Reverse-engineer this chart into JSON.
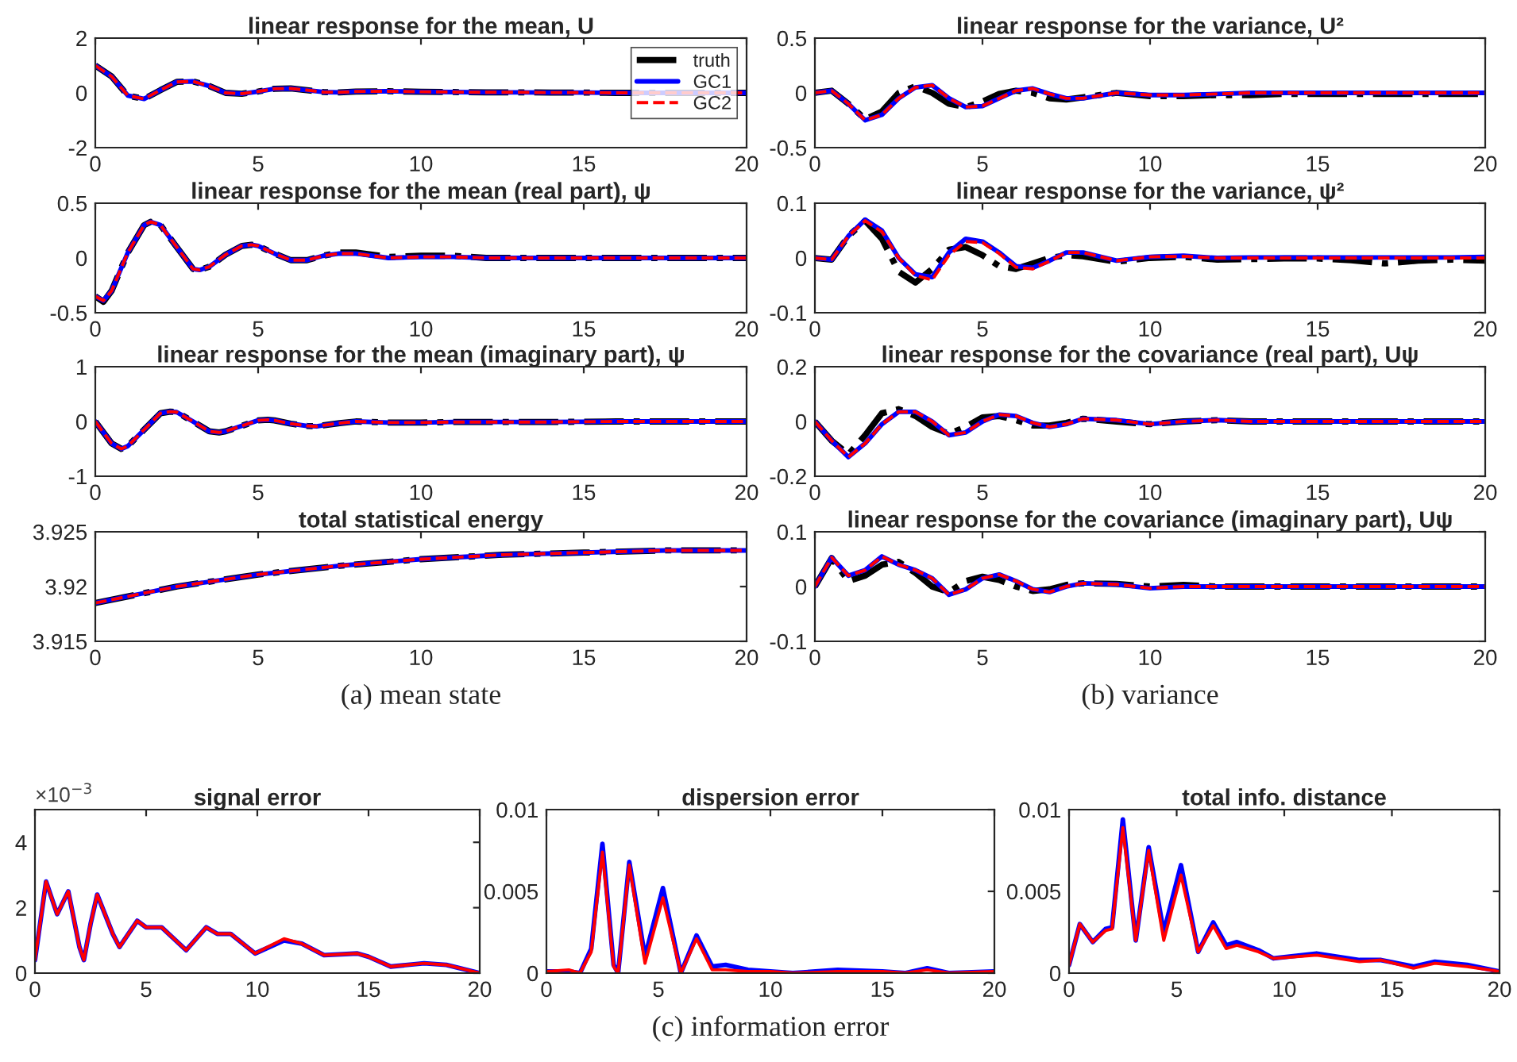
{
  "chart_data": [
    {
      "type": "line",
      "title": "linear response for the mean, U",
      "legend": "top right",
      "xlim": [
        0,
        20
      ],
      "xticks": [
        0,
        5,
        10,
        15,
        20
      ],
      "ylim": [
        -2,
        2
      ],
      "yticks": [
        -2,
        0,
        2
      ],
      "x": [
        0,
        0.5,
        1,
        1.5,
        2,
        2.5,
        3,
        3.5,
        4,
        4.5,
        5,
        5.5,
        6,
        6.5,
        7,
        7.5,
        8,
        9,
        10,
        11,
        12,
        13,
        14,
        15,
        16,
        17,
        18,
        19,
        20
      ],
      "series": [
        {
          "name": "truth",
          "color": "#000000",
          "line_style": "dashdot",
          "values": [
            1.0,
            0.6,
            -0.1,
            -0.22,
            0.1,
            0.4,
            0.42,
            0.25,
            0.0,
            -0.03,
            0.05,
            0.15,
            0.16,
            0.1,
            0.03,
            0.02,
            0.05,
            0.06,
            0.04,
            0.03,
            0.02,
            0.02,
            0.01,
            0.01,
            0,
            null,
            null,
            null,
            0
          ]
        },
        {
          "name": "GC1",
          "color": "#0000ff",
          "line_style": "solid",
          "values": [
            1.0,
            0.6,
            -0.1,
            -0.22,
            0.1,
            0.4,
            0.42,
            0.25,
            0.0,
            -0.03,
            0.05,
            0.15,
            0.16,
            0.1,
            0.03,
            0.02,
            0.05,
            0.06,
            0.04,
            0.03,
            0.02,
            0.02,
            0.01,
            0.01,
            0,
            null,
            null,
            null,
            0
          ]
        },
        {
          "name": "GC2",
          "color": "#ff0000",
          "line_style": "dashed",
          "values": [
            1.0,
            0.6,
            -0.1,
            -0.22,
            0.1,
            0.4,
            0.42,
            0.25,
            0.0,
            -0.03,
            0.05,
            0.15,
            0.16,
            0.1,
            0.03,
            0.02,
            0.05,
            0.06,
            0.04,
            0.03,
            0.02,
            0.02,
            0.01,
            0.01,
            0,
            null,
            null,
            null,
            0
          ]
        }
      ]
    },
    {
      "type": "line",
      "title": "linear response for the mean (real part), ψ",
      "xlim": [
        0,
        20
      ],
      "xticks": [
        0,
        5,
        10,
        15,
        20
      ],
      "ylim": [
        -0.5,
        0.5
      ],
      "yticks": [
        -0.5,
        0,
        0.5
      ],
      "x": [
        0,
        0.25,
        0.5,
        1,
        1.5,
        1.7,
        2,
        2.5,
        3,
        3.2,
        3.5,
        4,
        4.5,
        4.8,
        5,
        5.5,
        6,
        6.5,
        7,
        7.5,
        8,
        9,
        10,
        11,
        12,
        14,
        16,
        18,
        20
      ],
      "series": [
        {
          "color": "#000000",
          "line_style": "dashdot",
          "values": [
            -0.35,
            -0.4,
            -0.3,
            0.05,
            0.3,
            0.33,
            0.3,
            0.1,
            -0.1,
            -0.11,
            -0.08,
            0.03,
            0.11,
            0.12,
            0.11,
            0.04,
            -0.02,
            -0.02,
            0.02,
            0.05,
            0.05,
            0.01,
            0.02,
            0.02,
            0.0,
            0,
            0,
            0,
            0
          ]
        },
        {
          "color": "#0000ff",
          "line_style": "solid",
          "values": [
            -0.35,
            -0.39,
            -0.3,
            0.05,
            0.3,
            0.33,
            0.3,
            0.1,
            -0.1,
            -0.11,
            -0.08,
            0.03,
            0.11,
            0.12,
            0.11,
            0.04,
            -0.02,
            -0.02,
            0.02,
            0.04,
            0.04,
            0.0,
            0.01,
            0.01,
            0.0,
            0,
            0,
            0,
            0
          ]
        },
        {
          "color": "#ff0000",
          "line_style": "dashed",
          "values": [
            -0.35,
            -0.39,
            -0.3,
            0.05,
            0.3,
            0.33,
            0.3,
            0.1,
            -0.1,
            -0.11,
            -0.08,
            0.03,
            0.11,
            0.12,
            0.11,
            0.04,
            -0.02,
            -0.02,
            0.02,
            0.04,
            0.04,
            0.0,
            0.01,
            0.01,
            0.0,
            0,
            0,
            0,
            0
          ]
        }
      ]
    },
    {
      "type": "line",
      "title": "linear response for the mean (imaginary part), ψ",
      "xlim": [
        0,
        20
      ],
      "xticks": [
        0,
        5,
        10,
        15,
        20
      ],
      "ylim": [
        -1,
        1
      ],
      "yticks": [
        -1,
        0,
        1
      ],
      "x": [
        0,
        0.5,
        0.8,
        1,
        1.5,
        2,
        2.3,
        2.5,
        3,
        3.5,
        3.8,
        4,
        4.5,
        5,
        5.3,
        5.5,
        6,
        6.5,
        6.8,
        7,
        7.5,
        8,
        9,
        10,
        11,
        12,
        14,
        16,
        18,
        20
      ],
      "series": [
        {
          "color": "#000000",
          "line_style": "dashdot",
          "values": [
            0,
            -0.4,
            -0.5,
            -0.45,
            -0.15,
            0.15,
            0.18,
            0.17,
            0.0,
            -0.18,
            -0.2,
            -0.18,
            -0.08,
            0.02,
            0.03,
            0.02,
            -0.04,
            -0.08,
            -0.09,
            -0.07,
            -0.03,
            0.0,
            -0.02,
            -0.02,
            -0.01,
            -0.01,
            -0.01,
            0,
            0,
            0
          ]
        },
        {
          "color": "#0000ff",
          "line_style": "solid",
          "values": [
            0,
            -0.4,
            -0.5,
            -0.45,
            -0.15,
            0.15,
            0.18,
            0.17,
            0.0,
            -0.18,
            -0.2,
            -0.18,
            -0.08,
            0.02,
            0.03,
            0.02,
            -0.04,
            -0.08,
            -0.09,
            -0.07,
            -0.03,
            0.0,
            -0.02,
            -0.02,
            -0.01,
            -0.01,
            -0.01,
            0,
            0,
            0
          ]
        },
        {
          "color": "#ff0000",
          "line_style": "dashed",
          "values": [
            0,
            -0.4,
            -0.5,
            -0.45,
            -0.15,
            0.15,
            0.18,
            0.17,
            0.0,
            -0.18,
            -0.2,
            -0.18,
            -0.08,
            0.02,
            0.03,
            0.02,
            -0.04,
            -0.08,
            -0.09,
            -0.07,
            -0.03,
            0.0,
            -0.02,
            -0.02,
            -0.01,
            -0.01,
            -0.01,
            0,
            0,
            0
          ]
        }
      ]
    },
    {
      "type": "line",
      "title": "total statistical energy",
      "xlim": [
        0,
        20
      ],
      "xticks": [
        0,
        5,
        10,
        15,
        20
      ],
      "ylim": [
        3.915,
        3.925
      ],
      "yticks": [
        3.915,
        3.92,
        3.925
      ],
      "annotations": [
        "(a) mean state"
      ],
      "x": [
        0,
        2.5,
        5,
        7.5,
        10,
        12.5,
        15,
        17.5,
        20
      ],
      "series": [
        {
          "color": "#000000",
          "line_style": "dashdot",
          "values": [
            3.9185,
            3.92,
            3.9211,
            3.9219,
            3.9225,
            3.9229,
            3.9231,
            3.9233,
            3.9233
          ]
        },
        {
          "color": "#0000ff",
          "line_style": "solid",
          "values": [
            3.9185,
            3.92,
            3.9211,
            3.9219,
            3.9225,
            3.9229,
            3.9231,
            3.9233,
            3.9233
          ]
        },
        {
          "color": "#ff0000",
          "line_style": "dashed",
          "values": [
            3.9185,
            3.92,
            3.9211,
            3.9219,
            3.9225,
            3.9229,
            3.9231,
            3.9233,
            3.9233
          ]
        }
      ]
    },
    {
      "type": "line",
      "title": "linear response for the variance, U²",
      "xlim": [
        0,
        20
      ],
      "xticks": [
        0,
        5,
        10,
        15,
        20
      ],
      "ylim": [
        -0.5,
        0.5
      ],
      "yticks": [
        -0.5,
        0,
        0.5
      ],
      "x": [
        0,
        0.5,
        1,
        1.5,
        2,
        2.5,
        3,
        3.5,
        4,
        4.5,
        5,
        5.5,
        6,
        6.5,
        7,
        7.5,
        8,
        9,
        10,
        11,
        12,
        13,
        14,
        15,
        16,
        17,
        18,
        19,
        20
      ],
      "series": [
        {
          "color": "#000000",
          "line_style": "dashdot",
          "values": [
            0,
            0.02,
            -0.1,
            -0.24,
            -0.17,
            0.0,
            0.06,
            0.0,
            -0.1,
            -0.13,
            -0.08,
            -0.01,
            0.02,
            0.0,
            -0.05,
            -0.06,
            -0.04,
            0.0,
            -0.03,
            -0.03,
            -0.02,
            -0.02,
            -0.01,
            -0.01,
            -0.01,
            -0.01,
            -0.01,
            -0.01,
            -0.01
          ]
        },
        {
          "color": "#0000ff",
          "line_style": "solid",
          "values": [
            0,
            0.02,
            -0.1,
            -0.25,
            -0.2,
            -0.05,
            0.05,
            0.07,
            -0.05,
            -0.13,
            -0.12,
            -0.05,
            0.02,
            0.04,
            -0.01,
            -0.05,
            -0.05,
            0.0,
            -0.02,
            -0.02,
            -0.01,
            0,
            0,
            0,
            0,
            0,
            0,
            0,
            0
          ]
        },
        {
          "color": "#ff0000",
          "line_style": "dashed",
          "values": [
            0,
            0.02,
            -0.1,
            -0.25,
            -0.2,
            -0.05,
            0.05,
            0.07,
            -0.05,
            -0.13,
            -0.12,
            -0.05,
            0.02,
            0.04,
            -0.01,
            -0.05,
            -0.05,
            0.0,
            -0.02,
            -0.02,
            -0.01,
            0,
            0,
            0,
            0,
            0,
            0,
            0,
            0
          ]
        }
      ]
    },
    {
      "type": "line",
      "title": "linear response for the variance, ψ²",
      "xlim": [
        0,
        20
      ],
      "xticks": [
        0,
        5,
        10,
        15,
        20
      ],
      "ylim": [
        -0.1,
        0.1
      ],
      "yticks": [
        -0.1,
        0,
        0.1
      ],
      "x": [
        0,
        0.5,
        1,
        1.5,
        2,
        2.5,
        3,
        3.5,
        4,
        4.5,
        5,
        5.5,
        6,
        6.5,
        7,
        7.5,
        8,
        9,
        10,
        11,
        12,
        13,
        14,
        15,
        16,
        17,
        18,
        19,
        20
      ],
      "series": [
        {
          "color": "#000000",
          "line_style": "dashdot",
          "values": [
            0,
            -0.003,
            0.04,
            0.068,
            0.035,
            -0.025,
            -0.045,
            -0.02,
            0.015,
            0.02,
            0.005,
            -0.015,
            -0.02,
            -0.01,
            0.0,
            0.005,
            0.003,
            -0.007,
            0.0,
            0.002,
            -0.003,
            -0.002,
            -0.001,
            -0.001,
            -0.004,
            -0.01,
            -0.005,
            -0.003,
            -0.005
          ]
        },
        {
          "color": "#0000ff",
          "line_style": "solid",
          "values": [
            0,
            -0.003,
            0.04,
            0.07,
            0.05,
            0.0,
            -0.03,
            -0.035,
            0.01,
            0.035,
            0.03,
            0.01,
            -0.015,
            -0.018,
            -0.005,
            0.01,
            0.01,
            -0.005,
            0.002,
            0.004,
            0.0,
            0.001,
            0.001,
            0.001,
            0.001,
            0.001,
            0.001,
            0.001,
            0.002
          ]
        },
        {
          "color": "#ff0000",
          "line_style": "dashed",
          "values": [
            0,
            -0.003,
            0.04,
            0.068,
            0.048,
            0.0,
            -0.032,
            -0.04,
            0.005,
            0.03,
            0.028,
            0.008,
            -0.017,
            -0.02,
            -0.006,
            0.01,
            0.01,
            -0.005,
            0.002,
            0.003,
            0.0,
            0.0,
            0.0,
            0.0,
            0.0,
            0.0,
            0.0,
            0.0,
            0.0
          ]
        }
      ]
    },
    {
      "type": "line",
      "title": "linear response for the covariance (real part), Uψ",
      "xlim": [
        0,
        20
      ],
      "xticks": [
        0,
        5,
        10,
        15,
        20
      ],
      "ylim": [
        -0.2,
        0.2
      ],
      "yticks": [
        -0.2,
        0,
        0.2
      ],
      "x": [
        0,
        0.5,
        1,
        1.5,
        2,
        2.5,
        3,
        3.5,
        4,
        4.5,
        5,
        5.5,
        6,
        6.5,
        7,
        7.5,
        8,
        9,
        10,
        11,
        12,
        13,
        14,
        16,
        18,
        20
      ],
      "series": [
        {
          "color": "#000000",
          "line_style": "dashdot",
          "values": [
            0,
            -0.07,
            -0.12,
            -0.05,
            0.03,
            0.045,
            0.02,
            -0.02,
            -0.045,
            -0.02,
            0.015,
            0.02,
            0.005,
            -0.015,
            -0.015,
            -0.005,
            0.01,
            0.0,
            -0.01,
            0.0,
            0.005,
            0,
            0,
            0,
            0,
            0
          ]
        },
        {
          "color": "#0000ff",
          "line_style": "solid",
          "values": [
            0,
            -0.07,
            -0.13,
            -0.08,
            -0.01,
            0.035,
            0.035,
            0.0,
            -0.05,
            -0.04,
            0.0,
            0.025,
            0.02,
            -0.005,
            -0.02,
            -0.01,
            0.01,
            0.005,
            -0.01,
            0.0,
            0.005,
            0,
            0,
            0,
            0,
            0
          ]
        },
        {
          "color": "#ff0000",
          "line_style": "dashed",
          "values": [
            0,
            -0.07,
            -0.13,
            -0.08,
            -0.01,
            0.035,
            0.035,
            0.0,
            -0.05,
            -0.04,
            0.0,
            0.025,
            0.02,
            -0.005,
            -0.02,
            -0.01,
            0.01,
            0.005,
            -0.01,
            0.0,
            0.005,
            0,
            0,
            0,
            0,
            0
          ]
        }
      ]
    },
    {
      "type": "line",
      "title": "linear response for the covariance (imaginary part), Uψ",
      "xlim": [
        0,
        20
      ],
      "xticks": [
        0,
        5,
        10,
        15,
        20
      ],
      "ylim": [
        -0.1,
        0.1
      ],
      "yticks": [
        -0.1,
        0,
        0.1
      ],
      "annotations": [
        "(b) variance"
      ],
      "x": [
        0,
        0.5,
        1,
        1.5,
        2,
        2.5,
        3,
        3.5,
        4,
        4.5,
        5,
        5.5,
        6,
        6.5,
        7,
        7.5,
        8,
        9,
        10,
        11,
        12,
        13,
        14,
        16,
        18,
        20
      ],
      "series": [
        {
          "color": "#000000",
          "line_style": "dashdot",
          "values": [
            0,
            0.052,
            0.01,
            0.02,
            0.04,
            0.045,
            0.025,
            0.0,
            -0.01,
            0.01,
            0.018,
            0.012,
            0.0,
            -0.008,
            -0.005,
            0.003,
            0.006,
            0.005,
            0.0,
            0.003,
            0.0,
            0,
            0,
            0,
            0,
            0
          ]
        },
        {
          "color": "#0000ff",
          "line_style": "solid",
          "values": [
            0,
            0.053,
            0.02,
            0.03,
            0.055,
            0.04,
            0.03,
            0.015,
            -0.015,
            -0.005,
            0.015,
            0.022,
            0.01,
            -0.005,
            -0.01,
            0.0,
            0.006,
            0.004,
            -0.003,
            0.0,
            0.0,
            0,
            0,
            0,
            0,
            0
          ]
        },
        {
          "color": "#ff0000",
          "line_style": "dashed",
          "values": [
            0,
            0.053,
            0.02,
            0.03,
            0.055,
            0.04,
            0.03,
            0.015,
            -0.015,
            -0.005,
            0.015,
            0.022,
            0.01,
            -0.005,
            -0.01,
            0.0,
            0.006,
            0.004,
            -0.003,
            0.0,
            0.0,
            0,
            0,
            0,
            0,
            0
          ]
        }
      ]
    },
    {
      "type": "line",
      "title": "signal error",
      "ylabel": "×10$^{−3}$",
      "xlim": [
        0,
        20
      ],
      "xticks": [
        0,
        5,
        10,
        15,
        20
      ],
      "ylim": [
        0,
        5
      ],
      "yticks": [
        0,
        2,
        4
      ],
      "x": [
        0,
        0.5,
        1,
        1.5,
        2,
        2.2,
        2.5,
        2.8,
        3.5,
        3.8,
        4.6,
        5,
        5.7,
        6.8,
        7.7,
        8.2,
        8.8,
        9.9,
        11.2,
        12,
        13,
        14.5,
        15,
        16,
        17.5,
        18.5,
        20
      ],
      "series": [
        {
          "color": "#0000ff",
          "line_style": "solid",
          "values": [
            0.4,
            2.8,
            1.8,
            2.5,
            0.8,
            0.4,
            1.5,
            2.4,
            1.2,
            0.8,
            1.6,
            1.4,
            1.4,
            0.7,
            1.4,
            1.2,
            1.2,
            0.6,
            1.0,
            0.9,
            0.55,
            0.6,
            0.5,
            0.2,
            0.3,
            0.25,
            0.0
          ]
        },
        {
          "color": "#ff0000",
          "line_style": "solid",
          "values": [
            0.4,
            2.8,
            1.8,
            2.5,
            0.8,
            0.4,
            1.5,
            2.4,
            1.2,
            0.8,
            1.6,
            1.4,
            1.4,
            0.7,
            1.4,
            1.2,
            1.2,
            0.6,
            1.05,
            0.9,
            0.55,
            0.6,
            0.5,
            0.2,
            0.3,
            0.25,
            0.0
          ]
        }
      ]
    },
    {
      "type": "line",
      "title": "dispersion error",
      "xlim": [
        0,
        20
      ],
      "xticks": [
        0,
        5,
        10,
        15,
        20
      ],
      "ylim": [
        0,
        0.01
      ],
      "yticks": [
        0,
        0.005,
        0.01
      ],
      "annotations": [
        "(c) information error"
      ],
      "x": [
        0,
        1,
        1.5,
        2,
        2.5,
        3,
        3.2,
        3.7,
        4.4,
        5.2,
        6,
        6.7,
        7.4,
        8,
        9,
        10,
        11,
        13,
        15,
        16,
        17,
        18,
        20
      ],
      "series": [
        {
          "color": "#0000ff",
          "line_style": "solid",
          "values": [
            0.0001,
            0.0001,
            0,
            0.0015,
            0.0079,
            0.0005,
            0,
            0.0068,
            0.001,
            0.0052,
            0,
            0.0023,
            0.0004,
            0.0005,
            0.0002,
            0.0001,
            0,
            0.0002,
            0.0001,
            0,
            0.0003,
            0,
            0.0001
          ]
        },
        {
          "color": "#ff0000",
          "line_style": "solid",
          "values": [
            0.0001,
            0.0002,
            0,
            0.0013,
            0.0074,
            0.0004,
            0,
            0.0066,
            0.0006,
            0.0046,
            0,
            0.0021,
            0.0002,
            0.0002,
            0.0001,
            0.0001,
            0,
            0.0001,
            0.0001,
            0,
            0.0002,
            0,
            0.0001
          ]
        }
      ]
    },
    {
      "type": "line",
      "title": "total info. distance",
      "xlim": [
        0,
        20
      ],
      "xticks": [
        0,
        5,
        10,
        15,
        20
      ],
      "ylim": [
        0,
        0.01
      ],
      "yticks": [
        0,
        0.005,
        0.01
      ],
      "x": [
        0,
        0.5,
        1.1,
        1.7,
        2,
        2.5,
        3.1,
        3.7,
        4.4,
        5.2,
        6,
        6.7,
        7.3,
        7.8,
        8.8,
        9.5,
        11.5,
        13.5,
        14.5,
        16,
        17,
        18.5,
        20
      ],
      "series": [
        {
          "color": "#0000ff",
          "line_style": "solid",
          "values": [
            0.0005,
            0.003,
            0.0019,
            0.0027,
            0.0028,
            0.0094,
            0.002,
            0.0077,
            0.0025,
            0.0066,
            0.0013,
            0.0031,
            0.0017,
            0.0019,
            0.0014,
            0.0009,
            0.0012,
            0.0008,
            0.0008,
            0.0004,
            0.0007,
            0.0005,
            0.0001
          ]
        },
        {
          "color": "#ff0000",
          "line_style": "solid",
          "values": [
            0.0005,
            0.003,
            0.0019,
            0.0026,
            0.0027,
            0.0089,
            0.002,
            0.0075,
            0.002,
            0.006,
            0.0013,
            0.0029,
            0.0015,
            0.0017,
            0.0013,
            0.0009,
            0.0011,
            0.0007,
            0.0008,
            0.0003,
            0.0006,
            0.0004,
            0.0001
          ]
        }
      ]
    }
  ]
}
